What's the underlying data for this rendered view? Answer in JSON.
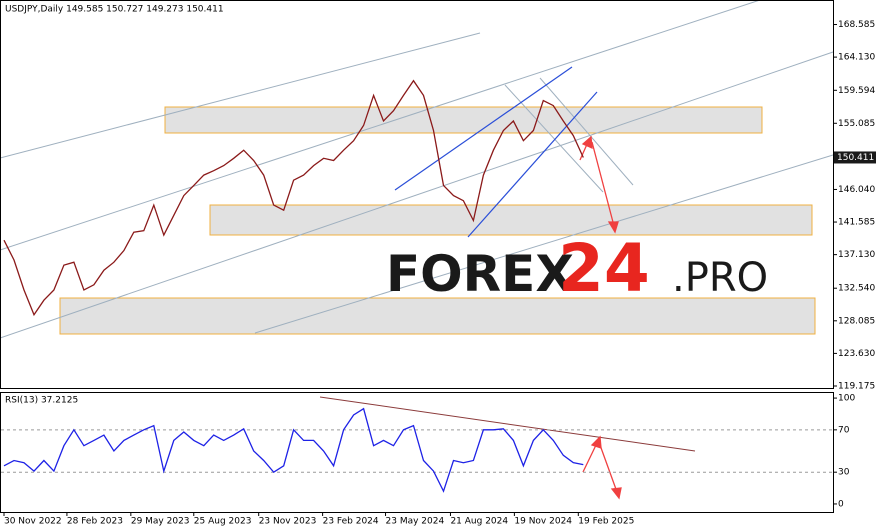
{
  "chart_data": [
    {
      "type": "line",
      "title": "USDJPY,Daily  149.585 150.727 149.273 150.411",
      "x": [
        3,
        13,
        23,
        33,
        43,
        53,
        63,
        73,
        83,
        93,
        103,
        113,
        123,
        133,
        143,
        153,
        163,
        173,
        183,
        193,
        203,
        213,
        223,
        233,
        243,
        253,
        263,
        273,
        283,
        293,
        303,
        313,
        323,
        333,
        343,
        353,
        363,
        373,
        383,
        393,
        403,
        413,
        423,
        433,
        443,
        453,
        463,
        473,
        483,
        493,
        503,
        513,
        523,
        533,
        543,
        553,
        563,
        573,
        583
      ],
      "series": [
        {
          "name": "USDJPY",
          "color": "#8b1a1a",
          "values": [
            139.1,
            136.4,
            132.3,
            128.9,
            130.9,
            132.3,
            135.7,
            136.1,
            132.3,
            133.0,
            135.0,
            136.1,
            137.7,
            140.2,
            140.4,
            143.9,
            139.8,
            142.5,
            145.2,
            146.6,
            148.0,
            148.6,
            149.3,
            150.3,
            151.4,
            150.0,
            148.0,
            143.9,
            143.2,
            147.3,
            148.0,
            149.3,
            150.3,
            150.0,
            151.4,
            152.7,
            154.8,
            158.9,
            155.4,
            156.8,
            158.9,
            160.9,
            158.9,
            154.1,
            146.6,
            145.2,
            144.5,
            141.8,
            148.0,
            151.4,
            154.1,
            155.4,
            152.7,
            154.1,
            158.2,
            157.5,
            155.4,
            153.4,
            150.411
          ]
        }
      ],
      "last_price": 150.411,
      "xlim": [
        0,
        833
      ],
      "ylim": [
        118.9,
        171.8
      ],
      "yticks": [
        168.585,
        {
          "value": 164.13,
          "label": "164.130"
        },
        159.594,
        155.085,
        {
          "value": 146.04,
          "label": "146.040"
        },
        141.585,
        {
          "value": 137.13,
          "label": "137.130"
        },
        {
          "value": 132.54,
          "label": "132.540"
        },
        128.085,
        {
          "value": 123.63,
          "label": "123.630"
        },
        119.175
      ]
    },
    {
      "type": "line",
      "title": "RSI(13) 37.2125",
      "x": [
        3,
        13,
        23,
        33,
        43,
        53,
        63,
        73,
        83,
        93,
        103,
        113,
        123,
        133,
        143,
        153,
        163,
        173,
        183,
        193,
        203,
        213,
        223,
        233,
        243,
        253,
        263,
        273,
        283,
        293,
        303,
        313,
        323,
        333,
        343,
        353,
        363,
        373,
        383,
        393,
        403,
        413,
        423,
        433,
        443,
        453,
        463,
        473,
        483,
        493,
        503,
        513,
        523,
        533,
        543,
        553,
        563,
        573,
        583
      ],
      "series": [
        {
          "name": "RSI(13)",
          "color": "#1e22e6",
          "values": [
            36,
            41,
            39,
            31,
            41,
            31,
            55,
            70,
            55,
            60,
            65,
            50,
            60,
            65,
            70,
            74,
            31,
            60,
            68,
            60,
            55,
            65,
            60,
            65,
            71,
            50,
            41,
            30,
            36,
            70,
            60,
            60,
            50,
            36,
            70,
            84,
            90,
            55,
            60,
            55,
            70,
            74,
            41,
            31,
            12,
            41,
            39,
            41,
            70,
            70,
            71,
            60,
            36,
            60,
            70,
            60,
            46,
            39,
            37.2125
          ]
        }
      ],
      "levels": [
        30,
        70
      ],
      "xlim": [
        0,
        833
      ],
      "ylim": [
        -7.6,
        104.8
      ],
      "yticks": [
        100,
        70,
        30,
        0
      ],
      "xticks": [
        {
          "value": 3,
          "label": "30 Nov 2022"
        },
        {
          "value": 66,
          "label": "28 Feb 2023"
        },
        {
          "value": 130,
          "label": "29 May 2023"
        },
        {
          "value": 193,
          "label": "25 Aug 2023"
        },
        {
          "value": 258,
          "label": "23 Nov 2023"
        },
        {
          "value": 322,
          "label": "23 Feb 2024"
        },
        {
          "value": 385,
          "label": "23 May 2024"
        },
        {
          "value": 450,
          "label": "21 Aug 2024"
        },
        {
          "value": 514,
          "label": "19 Nov 2024"
        },
        {
          "value": 578,
          "label": "19 Feb 2025"
        }
      ]
    }
  ],
  "watermark": {
    "main": "FOREX",
    "number": "24",
    "suffix": ".PRO"
  }
}
